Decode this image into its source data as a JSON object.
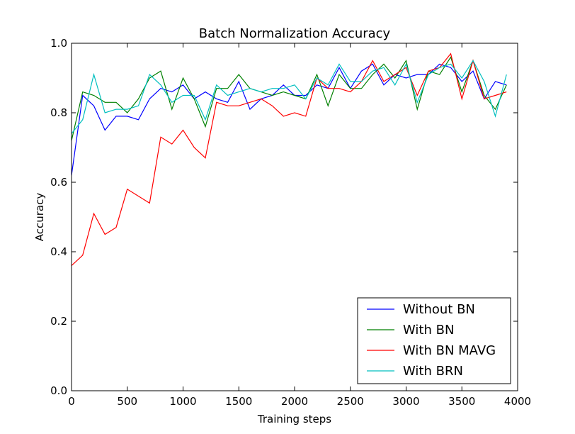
{
  "chart_data": {
    "type": "line",
    "title": "Batch Normalization Accuracy",
    "xlabel": "Training steps",
    "ylabel": "Accuracy",
    "xlim": [
      0,
      4000
    ],
    "ylim": [
      0.0,
      1.0
    ],
    "xticks": [
      0,
      500,
      1000,
      1500,
      2000,
      2500,
      3000,
      3500,
      4000
    ],
    "xtick_labels": [
      "0",
      "500",
      "1000",
      "1500",
      "2000",
      "2500",
      "3000",
      "3500",
      "4000"
    ],
    "yticks": [
      0.0,
      0.2,
      0.4,
      0.6,
      0.8,
      1.0
    ],
    "ytick_labels": [
      "0.0",
      "0.2",
      "0.4",
      "0.6",
      "0.8",
      "1.0"
    ],
    "legend_position": "bottom-right",
    "x": [
      0,
      100,
      200,
      300,
      400,
      500,
      600,
      700,
      800,
      900,
      1000,
      1100,
      1200,
      1300,
      1400,
      1500,
      1600,
      1700,
      1800,
      1900,
      2000,
      2100,
      2200,
      2300,
      2400,
      2500,
      2600,
      2700,
      2800,
      2900,
      3000,
      3100,
      3200,
      3300,
      3400,
      3500,
      3600,
      3700,
      3800,
      3900
    ],
    "series": [
      {
        "name": "Without BN",
        "color": "#0000ff",
        "values": [
          0.62,
          0.85,
          0.82,
          0.75,
          0.79,
          0.79,
          0.78,
          0.84,
          0.87,
          0.86,
          0.88,
          0.84,
          0.86,
          0.84,
          0.83,
          0.89,
          0.81,
          0.84,
          0.85,
          0.88,
          0.85,
          0.85,
          0.88,
          0.87,
          0.93,
          0.87,
          0.92,
          0.94,
          0.88,
          0.91,
          0.9,
          0.91,
          0.91,
          0.94,
          0.93,
          0.89,
          0.92,
          0.84,
          0.89,
          0.88
        ]
      },
      {
        "name": "With BN",
        "color": "#008000",
        "values": [
          0.72,
          0.86,
          0.85,
          0.83,
          0.83,
          0.8,
          0.84,
          0.9,
          0.92,
          0.81,
          0.9,
          0.84,
          0.76,
          0.87,
          0.87,
          0.91,
          0.87,
          0.86,
          0.85,
          0.86,
          0.85,
          0.84,
          0.91,
          0.82,
          0.91,
          0.87,
          0.87,
          0.91,
          0.94,
          0.9,
          0.95,
          0.81,
          0.92,
          0.91,
          0.96,
          0.86,
          0.95,
          0.85,
          0.81,
          0.88
        ]
      },
      {
        "name": "With BN MAVG",
        "color": "#ff0000",
        "values": [
          0.36,
          0.39,
          0.51,
          0.45,
          0.47,
          0.58,
          0.56,
          0.54,
          0.73,
          0.71,
          0.75,
          0.7,
          0.67,
          0.83,
          0.82,
          0.82,
          0.83,
          0.84,
          0.82,
          0.79,
          0.8,
          0.79,
          0.9,
          0.87,
          0.87,
          0.86,
          0.89,
          0.95,
          0.89,
          0.91,
          0.93,
          0.85,
          0.92,
          0.93,
          0.97,
          0.84,
          0.95,
          0.84,
          0.85,
          0.86
        ]
      },
      {
        "name": "With BRN",
        "color": "#00bfbf",
        "values": [
          0.74,
          0.78,
          0.91,
          0.8,
          0.81,
          0.81,
          0.82,
          0.91,
          0.88,
          0.83,
          0.85,
          0.85,
          0.78,
          0.88,
          0.85,
          0.86,
          0.87,
          0.86,
          0.87,
          0.87,
          0.88,
          0.84,
          0.9,
          0.88,
          0.94,
          0.89,
          0.89,
          0.92,
          0.93,
          0.88,
          0.94,
          0.83,
          0.91,
          0.93,
          0.94,
          0.9,
          0.95,
          0.89,
          0.79,
          0.91
        ]
      }
    ]
  }
}
